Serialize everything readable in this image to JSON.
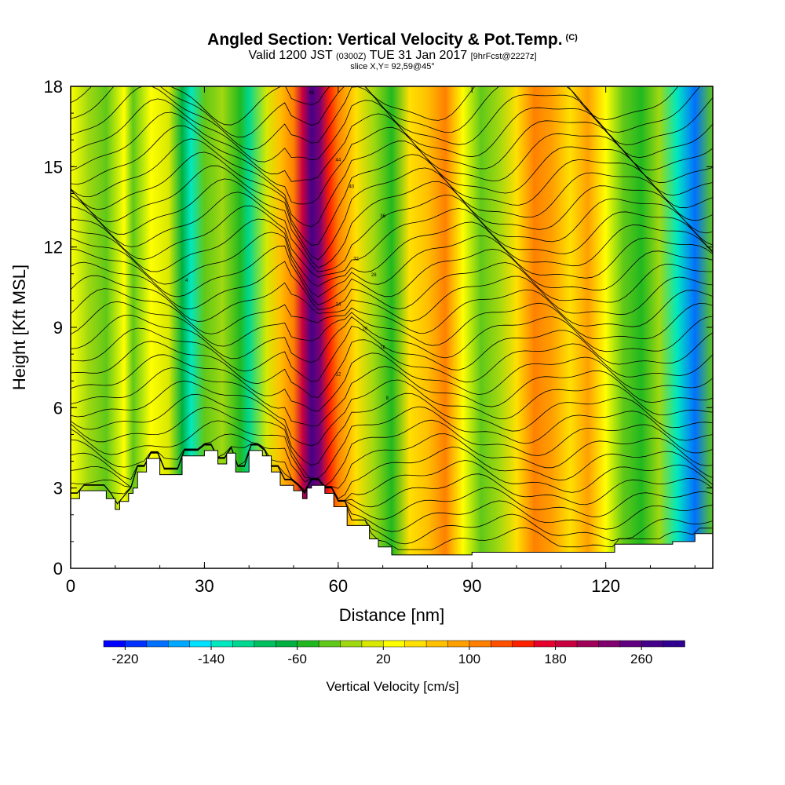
{
  "header": {
    "title": "Angled Section: Vertical Velocity & Pot.Temp.",
    "title_unit": "(C)",
    "valid_prefix": "Valid 1200 JST",
    "valid_utc": "(0300Z)",
    "valid_date": "TUE 31 Jan 2017",
    "forecast_tag": "[9hrFcst@2227z]",
    "slice": "slice X,Y= 92,59@45°"
  },
  "chart_data": {
    "type": "heatmap",
    "xlabel": "Distance [nm]",
    "ylabel": "Height [Kft MSL]",
    "xlim": [
      0,
      144
    ],
    "ylim": [
      0,
      18
    ],
    "x_ticks": [
      0,
      30,
      60,
      90,
      120
    ],
    "y_ticks": [
      0,
      3,
      6,
      9,
      12,
      15,
      18
    ],
    "colorbar": {
      "label": "Vertical Velocity [cm/s]",
      "range": [
        -240,
        300
      ],
      "step": 20,
      "tick_values": [
        -220,
        -140,
        -60,
        20,
        100,
        180,
        260
      ],
      "tick_labels": [
        "-220",
        "-140",
        "-60",
        "20",
        "100",
        "180",
        "260"
      ],
      "colors": [
        "#0000ff",
        "#0030ff",
        "#0070ff",
        "#00a8ff",
        "#00e0ff",
        "#00e8c0",
        "#00d890",
        "#00c060",
        "#00b040",
        "#20b820",
        "#60c818",
        "#a0d810",
        "#d8e800",
        "#ffff00",
        "#ffe000",
        "#ffc000",
        "#ffa000",
        "#ff8000",
        "#ff5000",
        "#ff2000",
        "#e8002c",
        "#c80040",
        "#a00058",
        "#800070",
        "#600080",
        "#440088",
        "#300090"
      ]
    },
    "vertical_velocity_profile": {
      "x": [
        0,
        4,
        8,
        12,
        14,
        18,
        22,
        25,
        27,
        30,
        34,
        38,
        40,
        44,
        47,
        50,
        52,
        54,
        56,
        58,
        60,
        64,
        68,
        72,
        76,
        80,
        84,
        88,
        92,
        96,
        100,
        104,
        108,
        112,
        116,
        120,
        124,
        128,
        132,
        136,
        140,
        144
      ],
      "values": [
        20,
        -10,
        -40,
        30,
        -30,
        20,
        0,
        -80,
        -140,
        -40,
        -20,
        -60,
        -110,
        0,
        60,
        100,
        180,
        260,
        220,
        150,
        100,
        40,
        -20,
        -60,
        40,
        70,
        100,
        20,
        -30,
        -20,
        40,
        100,
        80,
        40,
        80,
        20,
        -40,
        -60,
        -20,
        -140,
        -200,
        -40
      ]
    },
    "terrain_height": {
      "x": [
        0,
        2,
        5,
        8,
        10,
        11,
        13,
        14,
        15,
        17,
        19,
        20,
        25,
        30,
        33,
        35,
        37,
        40,
        43,
        45,
        47,
        50,
        52,
        53,
        54,
        57,
        59,
        62,
        65,
        67,
        69,
        72,
        80,
        90,
        100,
        110,
        113,
        120,
        122,
        125,
        130,
        135,
        137,
        140,
        144
      ],
      "values": [
        2.6,
        2.9,
        2.9,
        2.6,
        2.2,
        2.5,
        2.8,
        3.0,
        3.6,
        4.1,
        4.1,
        3.5,
        4.2,
        4.4,
        3.9,
        4.3,
        3.6,
        4.4,
        4.2,
        3.6,
        3.1,
        2.9,
        2.6,
        3.0,
        3.1,
        2.8,
        2.3,
        1.6,
        1.6,
        1.1,
        0.8,
        0.5,
        0.5,
        0.6,
        0.6,
        0.6,
        0.6,
        0.6,
        0.9,
        0.9,
        0.9,
        1.0,
        1.0,
        1.3,
        1.3
      ]
    },
    "pot_temp_contour_labels": [
      "48",
      "44",
      "40",
      "36",
      "32",
      "28",
      "24",
      "20",
      "16",
      "12",
      "8",
      "4"
    ]
  }
}
